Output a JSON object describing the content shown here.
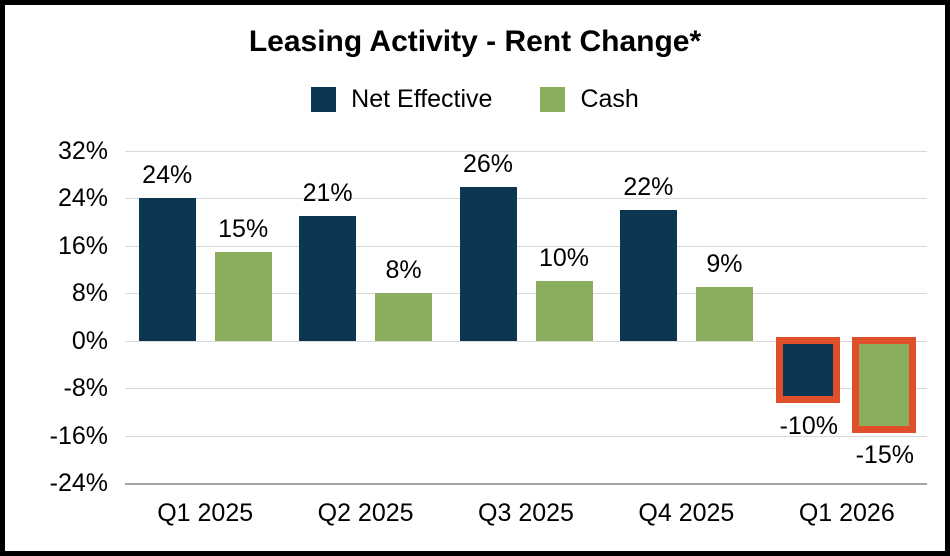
{
  "chart_data": {
    "type": "bar",
    "title": "Leasing Activity - Rent Change*",
    "categories": [
      "Q1 2025",
      "Q2 2025",
      "Q3 2025",
      "Q4 2025",
      "Q1 2026"
    ],
    "series": [
      {
        "name": "Net Effective",
        "color": "#0b3752",
        "values": [
          24,
          21,
          26,
          22,
          -10
        ],
        "labels": [
          "24%",
          "21%",
          "26%",
          "22%",
          "-10%"
        ]
      },
      {
        "name": "Cash",
        "color": "#8bad5e",
        "values": [
          15,
          8,
          10,
          9,
          -15
        ],
        "labels": [
          "15%",
          "8%",
          "10%",
          "9%",
          "-15%"
        ]
      }
    ],
    "y_axis": {
      "ticks": [
        "32%",
        "24%",
        "16%",
        "8%",
        "0%",
        "-8%",
        "-16%",
        "-24%"
      ],
      "tick_values": [
        32,
        24,
        16,
        8,
        0,
        -8,
        -16,
        -24
      ],
      "max": 32,
      "min": -24,
      "step": 8
    },
    "grid": true,
    "legend_position": "top",
    "data_labels": true,
    "highlight": {
      "category": "Q1 2026",
      "color": "#e04e2a",
      "style": "thick-border"
    },
    "colors": {
      "gridline": "#d9d9d9",
      "axis_line": "#a6a6a6",
      "text": "#000000",
      "background": "#ffffff",
      "frame_border": "#000000"
    }
  }
}
